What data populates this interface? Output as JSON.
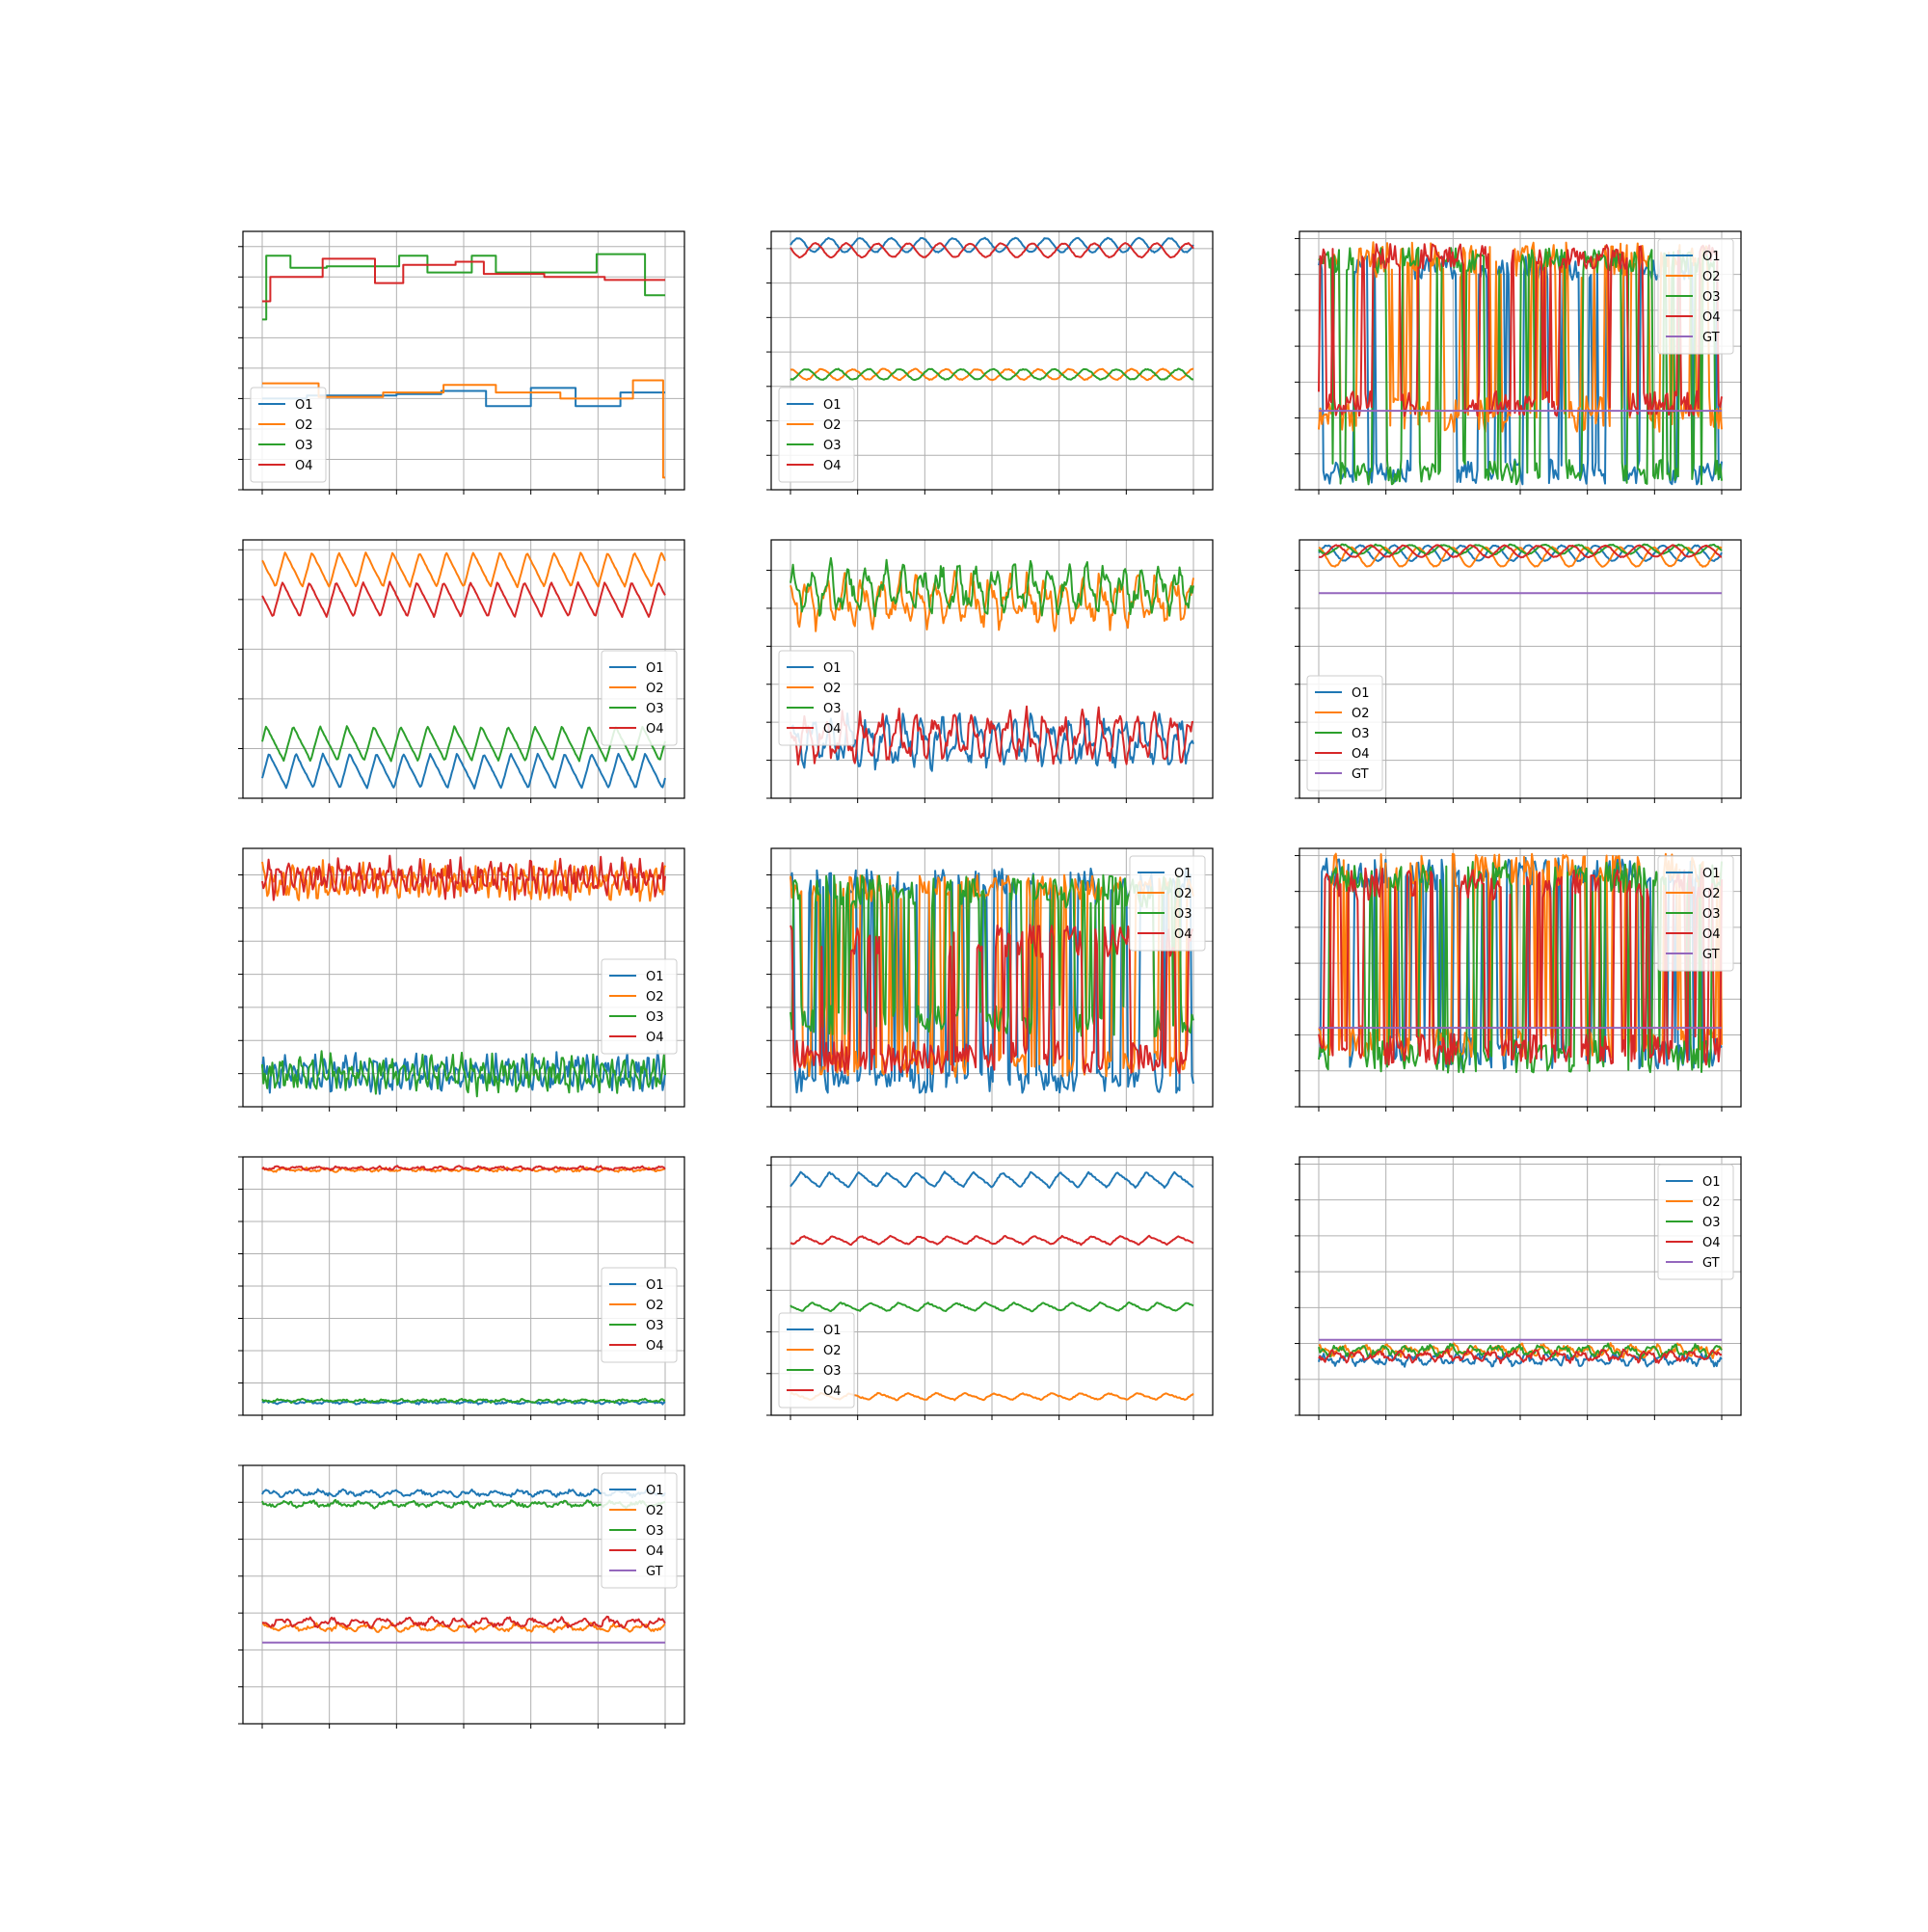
{
  "figure": {
    "colors": {
      "O1": "#1f77b4",
      "O2": "#ff7f0e",
      "O3": "#2ca02c",
      "O4": "#d62728",
      "GT": "#9467bd",
      "grid": "#b0b0b0",
      "axes": "#000000"
    }
  },
  "chart_data": [
    {
      "id": "p1",
      "type": "line",
      "style": "step",
      "ylim": [
        0,
        8.5
      ],
      "legend": "lower-left",
      "grid": true,
      "series": [
        {
          "name": "O1",
          "mode": "step",
          "values": [
            3.0,
            3.1,
            3.1,
            3.15,
            3.25,
            2.75,
            3.35,
            2.75,
            3.2
          ]
        },
        {
          "name": "O2",
          "mode": "step",
          "values": [
            3.5,
            3.05,
            3.2,
            3.45,
            3.2,
            3.0,
            3.6,
            0.4
          ],
          "edges": [
            0,
            0.14,
            0.3,
            0.45,
            0.58,
            0.74,
            0.92,
            0.995,
            1.0
          ]
        },
        {
          "name": "O3",
          "mode": "step",
          "values": [
            5.6,
            7.7,
            7.3,
            7.35,
            7.7,
            7.15,
            7.7,
            7.15,
            7.75,
            6.4
          ],
          "edges": [
            0,
            0.01,
            0.07,
            0.16,
            0.34,
            0.41,
            0.52,
            0.58,
            0.83,
            0.95,
            1.0
          ]
        },
        {
          "name": "O4",
          "mode": "step",
          "values": [
            6.2,
            7.0,
            7.6,
            6.8,
            7.4,
            7.5,
            7.1,
            7.0,
            6.9
          ],
          "edges": [
            0,
            0.02,
            0.15,
            0.28,
            0.35,
            0.48,
            0.55,
            0.7,
            0.85,
            1.0
          ]
        }
      ]
    },
    {
      "id": "p2",
      "type": "line",
      "ylim": [
        0,
        7.5
      ],
      "legend": "lower-left",
      "grid": true,
      "series": [
        {
          "name": "O1",
          "mode": "sine",
          "base": 7.1,
          "amp": 0.2,
          "cycles": 13,
          "phase": 0.0,
          "noise": 0.03
        },
        {
          "name": "O2",
          "mode": "sine",
          "base": 3.35,
          "amp": 0.15,
          "cycles": 13,
          "phase": 1.5,
          "noise": 0.03
        },
        {
          "name": "O3",
          "mode": "sine",
          "base": 3.35,
          "amp": 0.15,
          "cycles": 13,
          "phase": 4.6,
          "noise": 0.03
        },
        {
          "name": "O4",
          "mode": "sine",
          "base": 6.95,
          "amp": 0.2,
          "cycles": 13,
          "phase": 2.8,
          "noise": 0.03
        }
      ]
    },
    {
      "id": "p3",
      "type": "line",
      "ylim": [
        0,
        7.2
      ],
      "legend": "upper-right",
      "grid": true,
      "series": [
        {
          "name": "O1",
          "mode": "switch",
          "levels": [
            6.2,
            0.5
          ],
          "p": 0.12,
          "noise": 0.35
        },
        {
          "name": "O2",
          "mode": "switch",
          "levels": [
            2.1,
            6.4
          ],
          "p": 0.18,
          "noise": 0.5
        },
        {
          "name": "O3",
          "mode": "switch",
          "levels": [
            6.4,
            0.5
          ],
          "p": 0.15,
          "noise": 0.35
        },
        {
          "name": "O4",
          "mode": "switch",
          "levels": [
            2.4,
            6.5
          ],
          "p": 0.14,
          "noise": 0.35
        },
        {
          "name": "GT",
          "mode": "const",
          "value": 2.2
        }
      ]
    },
    {
      "id": "p4",
      "type": "line",
      "ylim": [
        0,
        5.2
      ],
      "legend": "center-right",
      "grid": true,
      "series": [
        {
          "name": "O1",
          "mode": "saw",
          "base": 0.55,
          "amp": 0.35,
          "cycles": 15,
          "phase": 0.1,
          "noise": 0.02
        },
        {
          "name": "O2",
          "mode": "saw",
          "base": 4.6,
          "amp": 0.35,
          "cycles": 15,
          "phase": 0.5,
          "noise": 0.02
        },
        {
          "name": "O3",
          "mode": "saw",
          "base": 1.1,
          "amp": 0.35,
          "cycles": 15,
          "phase": 0.2,
          "noise": 0.02
        },
        {
          "name": "O4",
          "mode": "saw",
          "base": 4.0,
          "amp": 0.35,
          "cycles": 15,
          "phase": 0.6,
          "noise": 0.02
        }
      ]
    },
    {
      "id": "p5",
      "type": "line",
      "ylim": [
        0,
        6.8
      ],
      "legend": "center-left",
      "grid": true,
      "series": [
        {
          "name": "O1",
          "mode": "osc",
          "base": 1.5,
          "amp": 0.65,
          "cycles": 22,
          "phase": 0.3,
          "noise": 0.2
        },
        {
          "name": "O2",
          "mode": "osc",
          "base": 5.2,
          "amp": 0.65,
          "cycles": 22,
          "phase": 2.0,
          "noise": 0.2
        },
        {
          "name": "O3",
          "mode": "osc",
          "base": 5.5,
          "amp": 0.65,
          "cycles": 22,
          "phase": 0.5,
          "noise": 0.2
        },
        {
          "name": "O4",
          "mode": "osc",
          "base": 1.6,
          "amp": 0.65,
          "cycles": 22,
          "phase": 2.3,
          "noise": 0.2
        }
      ]
    },
    {
      "id": "p6",
      "type": "line",
      "ylim": [
        0,
        6.8
      ],
      "legend": "lower-left",
      "grid": true,
      "series": [
        {
          "name": "O1",
          "mode": "sine",
          "base": 6.45,
          "amp": 0.2,
          "cycles": 12,
          "phase": 0.0,
          "noise": 0.03
        },
        {
          "name": "O2",
          "mode": "sine",
          "base": 6.35,
          "amp": 0.25,
          "cycles": 12,
          "phase": 1.8,
          "noise": 0.03
        },
        {
          "name": "O3",
          "mode": "sine",
          "base": 6.55,
          "amp": 0.12,
          "cycles": 12,
          "phase": 3.3,
          "noise": 0.03
        },
        {
          "name": "O4",
          "mode": "sine",
          "base": 6.5,
          "amp": 0.15,
          "cycles": 12,
          "phase": 4.5,
          "noise": 0.03
        },
        {
          "name": "GT",
          "mode": "const",
          "value": 5.4
        }
      ]
    },
    {
      "id": "p7",
      "type": "line",
      "ylim": [
        0,
        7.8
      ],
      "legend": "center-right",
      "grid": true,
      "series": [
        {
          "name": "O1",
          "mode": "osc",
          "base": 1.0,
          "amp": 0.45,
          "cycles": 40,
          "phase": 0.0,
          "noise": 0.25
        },
        {
          "name": "O2",
          "mode": "osc",
          "base": 6.8,
          "amp": 0.45,
          "cycles": 40,
          "phase": 1.3,
          "noise": 0.25
        },
        {
          "name": "O3",
          "mode": "osc",
          "base": 1.0,
          "amp": 0.45,
          "cycles": 40,
          "phase": 2.6,
          "noise": 0.25
        },
        {
          "name": "O4",
          "mode": "osc",
          "base": 6.9,
          "amp": 0.45,
          "cycles": 40,
          "phase": 3.9,
          "noise": 0.25
        }
      ]
    },
    {
      "id": "p8",
      "type": "line",
      "ylim": [
        0,
        7.8
      ],
      "legend": "upper-right",
      "grid": true,
      "series": [
        {
          "name": "O1",
          "mode": "switch",
          "levels": [
            6.8,
            0.8
          ],
          "p": 0.2,
          "noise": 0.4
        },
        {
          "name": "O2",
          "mode": "switch",
          "levels": [
            1.3,
            6.6
          ],
          "p": 0.2,
          "noise": 0.4
        },
        {
          "name": "O3",
          "mode": "switch",
          "levels": [
            2.6,
            6.5
          ],
          "p": 0.22,
          "noise": 0.5
        },
        {
          "name": "O4",
          "mode": "switch",
          "levels": [
            5.0,
            1.5
          ],
          "p": 0.15,
          "noise": 0.5
        }
      ]
    },
    {
      "id": "p9",
      "type": "line",
      "ylim": [
        0,
        7.2
      ],
      "legend": "upper-right",
      "grid": true,
      "series": [
        {
          "name": "O1",
          "mode": "switch",
          "levels": [
            1.5,
            6.5
          ],
          "p": 0.18,
          "noise": 0.45
        },
        {
          "name": "O2",
          "mode": "switch",
          "levels": [
            1.8,
            6.6
          ],
          "p": 0.22,
          "noise": 0.45
        },
        {
          "name": "O3",
          "mode": "switch",
          "levels": [
            1.4,
            6.4
          ],
          "p": 0.2,
          "noise": 0.45
        },
        {
          "name": "O4",
          "mode": "switch",
          "levels": [
            1.6,
            6.2
          ],
          "p": 0.18,
          "noise": 0.45
        },
        {
          "name": "GT",
          "mode": "const",
          "value": 2.2
        }
      ]
    },
    {
      "id": "p10",
      "type": "line",
      "ylim": [
        0,
        8.0
      ],
      "legend": "center-right",
      "grid": true,
      "series": [
        {
          "name": "O1",
          "mode": "osc",
          "base": 0.4,
          "amp": 0.04,
          "cycles": 20,
          "phase": 0.0,
          "noise": 0.03
        },
        {
          "name": "O2",
          "mode": "osc",
          "base": 7.6,
          "amp": 0.05,
          "cycles": 20,
          "phase": 1.0,
          "noise": 0.03
        },
        {
          "name": "O3",
          "mode": "osc",
          "base": 0.45,
          "amp": 0.04,
          "cycles": 20,
          "phase": 2.0,
          "noise": 0.03
        },
        {
          "name": "O4",
          "mode": "osc",
          "base": 7.65,
          "amp": 0.05,
          "cycles": 20,
          "phase": 3.0,
          "noise": 0.03
        }
      ]
    },
    {
      "id": "p11",
      "type": "line",
      "ylim": [
        0,
        6.2
      ],
      "legend": "lower-left",
      "grid": true,
      "series": [
        {
          "name": "O1",
          "mode": "saw",
          "base": 5.65,
          "amp": 0.18,
          "cycles": 14,
          "phase": 0.0,
          "noise": 0.04
        },
        {
          "name": "O2",
          "mode": "saw",
          "base": 0.45,
          "amp": 0.08,
          "cycles": 14,
          "phase": 0.3,
          "noise": 0.03
        },
        {
          "name": "O3",
          "mode": "saw",
          "base": 2.6,
          "amp": 0.1,
          "cycles": 14,
          "phase": 0.6,
          "noise": 0.03
        },
        {
          "name": "O4",
          "mode": "saw",
          "base": 4.2,
          "amp": 0.1,
          "cycles": 14,
          "phase": 0.9,
          "noise": 0.03
        }
      ]
    },
    {
      "id": "p12",
      "type": "line",
      "ylim": [
        0,
        7.2
      ],
      "legend": "upper-right",
      "grid": true,
      "series": [
        {
          "name": "O1",
          "mode": "osc",
          "base": 1.55,
          "amp": 0.15,
          "cycles": 18,
          "phase": 0.0,
          "noise": 0.07
        },
        {
          "name": "O2",
          "mode": "osc",
          "base": 1.8,
          "amp": 0.15,
          "cycles": 18,
          "phase": 1.2,
          "noise": 0.07
        },
        {
          "name": "O3",
          "mode": "osc",
          "base": 1.8,
          "amp": 0.15,
          "cycles": 18,
          "phase": 2.4,
          "noise": 0.07
        },
        {
          "name": "O4",
          "mode": "osc",
          "base": 1.65,
          "amp": 0.15,
          "cycles": 18,
          "phase": 3.6,
          "noise": 0.07
        },
        {
          "name": "GT",
          "mode": "const",
          "value": 2.1
        }
      ]
    },
    {
      "id": "p13",
      "type": "line",
      "ylim": [
        0,
        7.0
      ],
      "legend": "upper-right",
      "grid": true,
      "series": [
        {
          "name": "O1",
          "mode": "osc",
          "base": 6.25,
          "amp": 0.08,
          "cycles": 16,
          "phase": 0.0,
          "noise": 0.04
        },
        {
          "name": "O2",
          "mode": "osc",
          "base": 2.6,
          "amp": 0.1,
          "cycles": 16,
          "phase": 1.0,
          "noise": 0.04
        },
        {
          "name": "O3",
          "mode": "osc",
          "base": 5.95,
          "amp": 0.08,
          "cycles": 16,
          "phase": 2.0,
          "noise": 0.04
        },
        {
          "name": "O4",
          "mode": "osc",
          "base": 2.75,
          "amp": 0.12,
          "cycles": 16,
          "phase": 3.0,
          "noise": 0.05
        },
        {
          "name": "GT",
          "mode": "const",
          "value": 2.2
        }
      ]
    }
  ]
}
